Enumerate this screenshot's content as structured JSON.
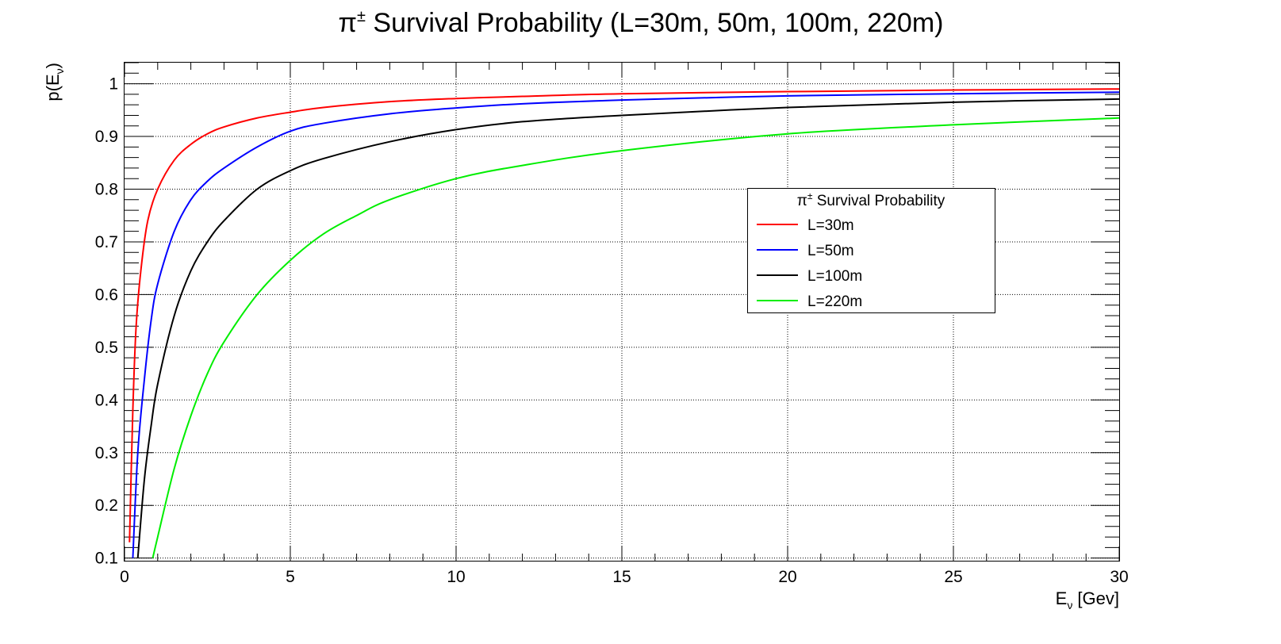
{
  "chart_data": {
    "type": "line",
    "title": {
      "greek": "π",
      "sup": "±",
      "rest": " Survival Probability (L=30m, 50m, 100m, 220m)"
    },
    "ylabel": {
      "main": "p(E",
      "sub": "ν",
      "close": ")"
    },
    "xlabel": {
      "main": "E",
      "sub": "ν",
      "rest": " [Gev]"
    },
    "xlim": [
      0,
      30
    ],
    "ylim": [
      0.095,
      1.04
    ],
    "xticks": [
      0,
      5,
      10,
      15,
      20,
      25,
      30
    ],
    "yticks": [
      0.1,
      0.2,
      0.3,
      0.4,
      0.5,
      0.6,
      0.7,
      0.8,
      0.9,
      1
    ],
    "xtick_labels": [
      "0",
      "5",
      "10",
      "15",
      "20",
      "25",
      "30"
    ],
    "ytick_labels": [
      "0.1",
      "0.2",
      "0.3",
      "0.4",
      "0.5",
      "0.6",
      "0.7",
      "0.8",
      "0.9",
      "1"
    ],
    "grid": true,
    "legend": {
      "title": {
        "greek": "π",
        "sup": "±",
        "rest": " Survival Probability"
      },
      "placement": "center-right"
    },
    "series": [
      {
        "name": "L=30m",
        "color": "#ff0000",
        "x": [
          0.15,
          0.25,
          0.35,
          0.5,
          0.7,
          1.0,
          1.5,
          2,
          2.5,
          3,
          4,
          5,
          6,
          8,
          10,
          12,
          15,
          20,
          25,
          30
        ],
        "y": [
          0.13,
          0.38,
          0.54,
          0.65,
          0.74,
          0.8,
          0.855,
          0.885,
          0.905,
          0.918,
          0.935,
          0.946,
          0.955,
          0.966,
          0.972,
          0.976,
          0.981,
          0.985,
          0.988,
          0.99
        ]
      },
      {
        "name": "L=50m",
        "color": "#0000ff",
        "x": [
          0.25,
          0.4,
          0.6,
          0.8,
          1.0,
          1.5,
          2,
          2.5,
          3,
          4,
          5,
          6,
          8,
          10,
          12,
          15,
          20,
          25,
          30
        ],
        "y": [
          0.1,
          0.3,
          0.44,
          0.55,
          0.62,
          0.72,
          0.78,
          0.815,
          0.84,
          0.88,
          0.91,
          0.925,
          0.943,
          0.954,
          0.962,
          0.969,
          0.977,
          0.981,
          0.984
        ]
      },
      {
        "name": "L=100m",
        "color": "#000000",
        "x": [
          0.4,
          0.6,
          0.8,
          1.0,
          1.5,
          2,
          2.5,
          3,
          4,
          5,
          6,
          8,
          10,
          12,
          15,
          20,
          25,
          30
        ],
        "y": [
          0.1,
          0.25,
          0.35,
          0.43,
          0.56,
          0.645,
          0.7,
          0.74,
          0.8,
          0.835,
          0.858,
          0.89,
          0.913,
          0.928,
          0.94,
          0.955,
          0.965,
          0.971
        ]
      },
      {
        "name": "L=220m",
        "color": "#00ee00",
        "x": [
          0.85,
          1.0,
          1.5,
          2,
          2.5,
          3,
          4,
          5,
          6,
          7,
          8,
          10,
          12,
          15,
          20,
          25,
          30
        ],
        "y": [
          0.1,
          0.14,
          0.27,
          0.37,
          0.45,
          0.51,
          0.6,
          0.665,
          0.715,
          0.75,
          0.78,
          0.82,
          0.845,
          0.873,
          0.905,
          0.922,
          0.935
        ]
      }
    ]
  }
}
